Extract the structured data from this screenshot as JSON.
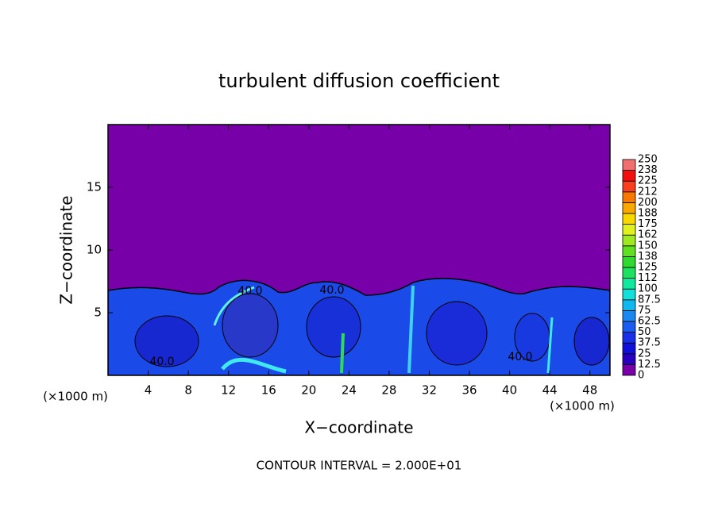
{
  "chart_data": {
    "type": "contour",
    "title": "turbulent diffusion coefficient",
    "x_label": "X−coordinate",
    "y_label": "Z−coordinate",
    "x_unit": "(×1000 m)",
    "note": "CONTOUR INTERVAL = 2.000E+01",
    "contour_label": "40.0",
    "xlim": [
      0,
      50
    ],
    "ylim": [
      0,
      20
    ],
    "xticks": [
      4,
      8,
      12,
      16,
      20,
      24,
      28,
      32,
      36,
      40,
      44,
      48
    ],
    "yticks": [
      5,
      10,
      15
    ],
    "colorbar": {
      "ticks": [
        0,
        12.5,
        25,
        37.5,
        50,
        62.5,
        75,
        87.5,
        100,
        {
          "value": 112.5,
          "label": "112"
        },
        125,
        {
          "value": 137.5,
          "label": "138"
        },
        150,
        {
          "value": 162.5,
          "label": "162"
        },
        175,
        {
          "value": 187.5,
          "label": "188"
        },
        200,
        {
          "value": 212.5,
          "label": "212"
        },
        225,
        {
          "value": 237.5,
          "label": "238"
        },
        250
      ],
      "colors": [
        "#7800a8",
        "#2a00c0",
        "#1010d8",
        "#1830e8",
        "#1a5cf0",
        "#1a88f0",
        "#10b8f0",
        "#10e0d8",
        "#10e8a0",
        "#20e060",
        "#30d830",
        "#60e020",
        "#a0e820",
        "#e0f020",
        "#f8d800",
        "#f8a800",
        "#f87800",
        "#f84020",
        "#f01010",
        "#f07070"
      ]
    }
  }
}
